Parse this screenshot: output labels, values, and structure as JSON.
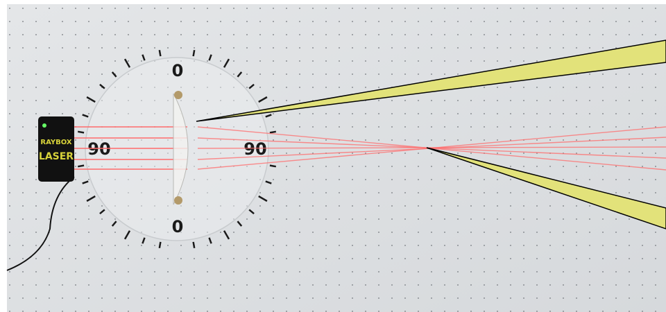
{
  "laser_box": {
    "brand": "RAYBOX",
    "label": "LASER"
  },
  "protractor": {
    "top": "0",
    "left": "90",
    "right": "90",
    "bottom": "0"
  }
}
